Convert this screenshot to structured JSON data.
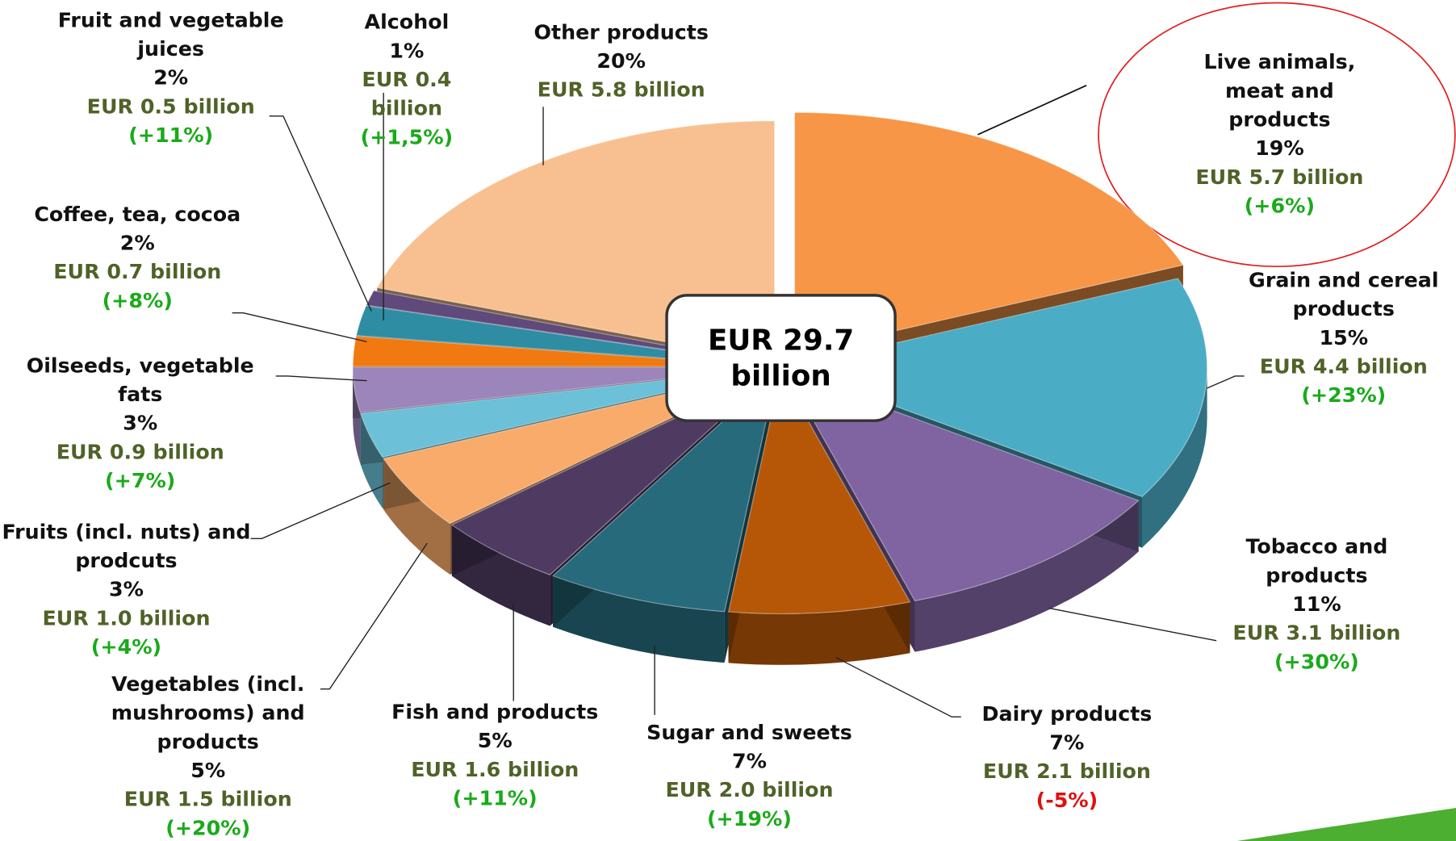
{
  "chart_data": {
    "type": "pie",
    "categories": [
      "Live animals, meat and products",
      "Grain and cereal products",
      "Tobacco and products",
      "Dairy products",
      "Sugar and sweets",
      "Fish and products",
      "Vegetables (incl. mushrooms) and products",
      "Fruits (incl. nuts) and prodcuts",
      "Oilseeds, vegetable fats",
      "Coffee, tea, cocoa",
      "Fruit and vegetable juices",
      "Alcohol",
      "Other products"
    ],
    "values": [
      19,
      15,
      11,
      7,
      7,
      5,
      5,
      3,
      3,
      2,
      2,
      1,
      20
    ],
    "value_labels": [
      "19%",
      "15%",
      "11%",
      "7%",
      "7%",
      "5%",
      "5%",
      "3%",
      "3%",
      "2%",
      "2%",
      "1%",
      "20%"
    ],
    "amounts": [
      5.7,
      4.4,
      3.1,
      2.1,
      2.0,
      1.6,
      1.5,
      1.0,
      0.9,
      0.7,
      0.5,
      0.4,
      5.8
    ],
    "amount_labels": [
      "EUR 5.7 billion",
      "EUR 4.4 billion",
      "EUR 3.1 billion",
      "EUR 2.1 billion",
      "EUR 2.0 billion",
      "EUR 1.6 billion",
      "EUR 1.5 billion",
      "EUR 1.0 billion",
      "EUR 0.9 billion",
      "EUR 0.7 billion",
      "EUR 0.5 billion",
      "EUR 0.4 billion",
      "EUR 5.8 billion"
    ],
    "changes": [
      6,
      23,
      30,
      -5,
      19,
      11,
      20,
      4,
      7,
      8,
      11,
      1.5,
      null
    ],
    "change_labels": [
      "(+6%)",
      "(+23%)",
      "(+30%)",
      "(-5%)",
      "(+19%)",
      "(+11%)",
      "(+20%)",
      "(+4%)",
      "(+7%)",
      "(+8%)",
      "(+11%)",
      "(+1,5%)",
      null
    ],
    "colors": [
      "#f79646",
      "#4bacc6",
      "#8064a2",
      "#b65708",
      "#276a7c",
      "#4f3b62",
      "#f9ab6b",
      "#6cc0d7",
      "#9c85bb",
      "#f07a10",
      "#2e8ca3",
      "#5f4a7b",
      "#f8c090"
    ],
    "total": {
      "value": 29.7,
      "label": "EUR 29.7 billion"
    }
  }
}
